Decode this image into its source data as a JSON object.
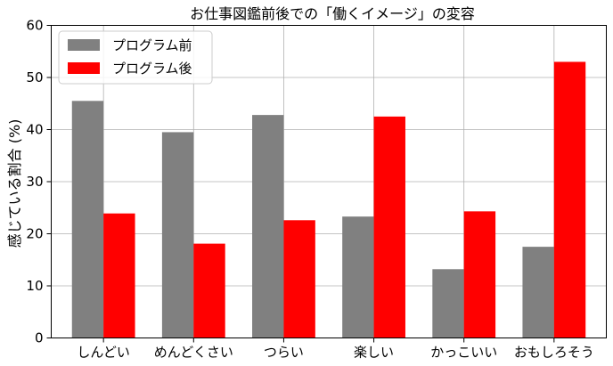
{
  "chart_data": {
    "type": "bar",
    "title": "お仕事図鑑前後での「働くイメージ」の変容",
    "xlabel": "",
    "ylabel": "感じている割合 (%)",
    "categories": [
      "しんどい",
      "めんどくさい",
      "つらい",
      "楽しい",
      "かっこいい",
      "おもしろそう"
    ],
    "series": [
      {
        "name": "プログラム前",
        "color": "#808080",
        "values": [
          45.5,
          39.5,
          42.8,
          23.3,
          13.2,
          17.5
        ]
      },
      {
        "name": "プログラム後",
        "color": "#ff0000",
        "values": [
          23.9,
          18.1,
          22.6,
          42.5,
          24.3,
          53.0
        ]
      }
    ],
    "ylim": [
      0,
      60
    ],
    "yticks": [
      0,
      10,
      20,
      30,
      40,
      50,
      60
    ],
    "grid": true,
    "legend_position": "top-left"
  }
}
